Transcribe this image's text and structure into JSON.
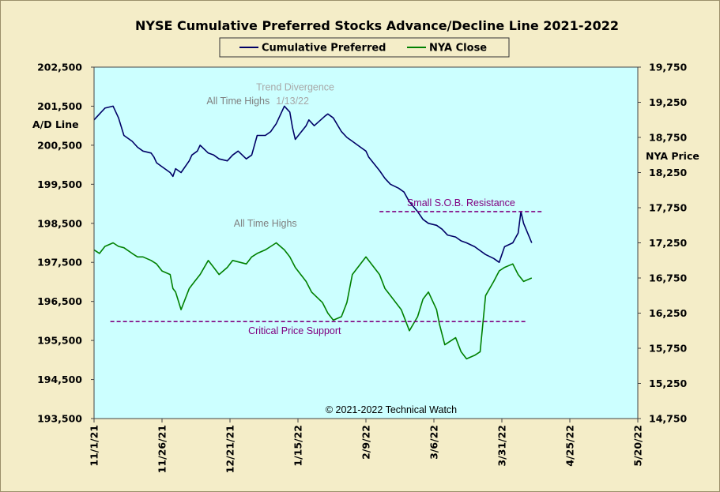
{
  "chart_data": {
    "type": "line",
    "title": "NYSE Cumulative  Preferred Stocks Advance/Decline  Line 2021-2022",
    "left_axis_label": "A/D Line",
    "right_axis_label": "NYA Price",
    "copyright": "© 2021-2022  Technical  Watch",
    "x_tick_labels": [
      "11/1/21",
      "11/26/21",
      "12/21/21",
      "1/15/22",
      "2/9/22",
      "3/6/22",
      "3/31/22",
      "4/25/22",
      "5/20/22"
    ],
    "x_ticks": [
      "2021-11-01",
      "2021-11-26",
      "2021-12-21",
      "2022-01-15",
      "2022-02-09",
      "2022-03-06",
      "2022-03-31",
      "2022-04-25",
      "2022-05-20"
    ],
    "xlim": [
      "2021-11-01",
      "2022-05-20"
    ],
    "left_ylim": [
      193500,
      202500
    ],
    "left_ticks": [
      193500,
      194500,
      195500,
      196500,
      197500,
      198500,
      199500,
      200500,
      201500,
      202500
    ],
    "left_tick_labels": [
      "193,500",
      "194,500",
      "195,500",
      "196,500",
      "197,500",
      "198,500",
      "199,500",
      "200,500",
      "201,500",
      "202,500"
    ],
    "right_ylim": [
      14750,
      19750
    ],
    "right_ticks": [
      14750,
      15250,
      15750,
      16250,
      16750,
      17250,
      17750,
      18250,
      18750,
      19250,
      19750
    ],
    "right_tick_labels": [
      "14,750",
      "15,250",
      "15,750",
      "16,250",
      "16,750",
      "17,250",
      "17,750",
      "18,250",
      "18,750",
      "19,250",
      "19,750"
    ],
    "legend_position": "top-center",
    "grid": false,
    "colors": {
      "plot_background": "#ccffff",
      "figure_background": "#f4edc8",
      "cumulative_preferred": "#000066",
      "nya_close": "#008000",
      "reference_lines": "#800080",
      "annotation_gray": "#808080",
      "annotation_purple": "#800080"
    },
    "series": [
      {
        "name": "Cumulative Preferred",
        "axis": "left",
        "x": [
          "2021-11-01",
          "2021-11-03",
          "2021-11-05",
          "2021-11-08",
          "2021-11-10",
          "2021-11-12",
          "2021-11-15",
          "2021-11-17",
          "2021-11-19",
          "2021-11-22",
          "2021-11-23",
          "2021-11-24",
          "2021-11-26",
          "2021-11-29",
          "2021-11-30",
          "2021-12-01",
          "2021-12-03",
          "2021-12-06",
          "2021-12-07",
          "2021-12-09",
          "2021-12-10",
          "2021-12-13",
          "2021-12-15",
          "2021-12-17",
          "2021-12-20",
          "2021-12-22",
          "2021-12-24",
          "2021-12-27",
          "2021-12-29",
          "2021-12-31",
          "2022-01-03",
          "2022-01-05",
          "2022-01-06",
          "2022-01-07",
          "2022-01-10",
          "2022-01-12",
          "2022-01-13",
          "2022-01-14",
          "2022-01-18",
          "2022-01-19",
          "2022-01-21",
          "2022-01-25",
          "2022-01-26",
          "2022-01-28",
          "2022-01-31",
          "2022-02-02",
          "2022-02-04",
          "2022-02-07",
          "2022-02-09",
          "2022-02-10",
          "2022-02-14",
          "2022-02-16",
          "2022-02-18",
          "2022-02-21",
          "2022-02-23",
          "2022-02-25",
          "2022-02-28",
          "2022-03-02",
          "2022-03-04",
          "2022-03-07",
          "2022-03-09",
          "2022-03-11",
          "2022-03-14",
          "2022-03-16",
          "2022-03-18",
          "2022-03-21",
          "2022-03-23",
          "2022-03-25",
          "2022-03-28",
          "2022-03-30",
          "2022-04-01",
          "2022-04-04",
          "2022-04-06",
          "2022-04-07",
          "2022-04-08",
          "2022-04-11"
        ],
        "values": [
          201150,
          201300,
          201450,
          201500,
          201200,
          200750,
          200600,
          200450,
          200350,
          200300,
          200200,
          200050,
          199950,
          199800,
          199700,
          199900,
          199800,
          200100,
          200250,
          200350,
          200500,
          200300,
          200250,
          200150,
          200100,
          200250,
          200350,
          200150,
          200250,
          200750,
          200750,
          200850,
          200950,
          201050,
          201500,
          201350,
          200950,
          200650,
          201000,
          201150,
          201000,
          201250,
          201300,
          201200,
          200850,
          200700,
          200600,
          200450,
          200350,
          200200,
          199850,
          199650,
          199500,
          199400,
          199300,
          199050,
          198800,
          198600,
          198500,
          198450,
          198350,
          198200,
          198150,
          198050,
          198000,
          197900,
          197800,
          197700,
          197600,
          197500,
          197900,
          198000,
          198250,
          198800,
          198500,
          198000
        ]
      },
      {
        "name": "NYA Close",
        "axis": "right",
        "x": [
          "2021-11-01",
          "2021-11-03",
          "2021-11-05",
          "2021-11-08",
          "2021-11-10",
          "2021-11-12",
          "2021-11-15",
          "2021-11-17",
          "2021-11-19",
          "2021-11-22",
          "2021-11-24",
          "2021-11-26",
          "2021-11-29",
          "2021-11-30",
          "2021-12-01",
          "2021-12-03",
          "2021-12-06",
          "2021-12-08",
          "2021-12-10",
          "2021-12-13",
          "2021-12-15",
          "2021-12-17",
          "2021-12-20",
          "2021-12-22",
          "2021-12-27",
          "2021-12-29",
          "2021-12-31",
          "2022-01-03",
          "2022-01-05",
          "2022-01-07",
          "2022-01-10",
          "2022-01-12",
          "2022-01-14",
          "2022-01-18",
          "2022-01-20",
          "2022-01-24",
          "2022-01-26",
          "2022-01-28",
          "2022-01-31",
          "2022-02-02",
          "2022-02-04",
          "2022-02-07",
          "2022-02-09",
          "2022-02-11",
          "2022-02-14",
          "2022-02-16",
          "2022-02-18",
          "2022-02-22",
          "2022-02-24",
          "2022-02-25",
          "2022-02-28",
          "2022-03-02",
          "2022-03-04",
          "2022-03-07",
          "2022-03-08",
          "2022-03-10",
          "2022-03-14",
          "2022-03-16",
          "2022-03-18",
          "2022-03-21",
          "2022-03-23",
          "2022-03-25",
          "2022-03-28",
          "2022-03-30",
          "2022-04-01",
          "2022-04-04",
          "2022-04-06",
          "2022-04-08",
          "2022-04-11"
        ],
        "values": [
          17150,
          17100,
          17200,
          17250,
          17200,
          17180,
          17100,
          17050,
          17050,
          17000,
          16950,
          16850,
          16800,
          16600,
          16550,
          16300,
          16600,
          16700,
          16800,
          17000,
          16900,
          16800,
          16900,
          17000,
          16950,
          17050,
          17100,
          17150,
          17200,
          17250,
          17150,
          17050,
          16900,
          16700,
          16550,
          16400,
          16250,
          16150,
          16200,
          16400,
          16800,
          16950,
          17050,
          16950,
          16800,
          16600,
          16500,
          16300,
          16100,
          16000,
          16200,
          16450,
          16550,
          16300,
          16100,
          15800,
          15900,
          15700,
          15600,
          15650,
          15700,
          16500,
          16700,
          16850,
          16900,
          16950,
          16800,
          16700,
          16750
        ]
      }
    ],
    "reference_lines": [
      {
        "label": "Small S.O.B. Resistance",
        "axis": "left",
        "value": 198800,
        "x_start": "2022-02-14",
        "x_end": "2022-04-15"
      },
      {
        "label": "Critical Price Support",
        "axis": "right",
        "value": 16130,
        "x_start": "2021-11-07",
        "x_end": "2022-04-09"
      }
    ],
    "annotations": [
      {
        "text": "All Time Highs",
        "series": "Cumulative Preferred",
        "x": "2021-12-24",
        "y": 201550
      },
      {
        "text": "Trend  Divergence",
        "x": "2022-01-14",
        "y": 201900
      },
      {
        "text": "1/13/22",
        "x": "2022-01-13",
        "y": 201550
      },
      {
        "text": "All Time Highs",
        "series": "NYA Close",
        "x": "2022-01-03",
        "y": 17480
      }
    ]
  }
}
